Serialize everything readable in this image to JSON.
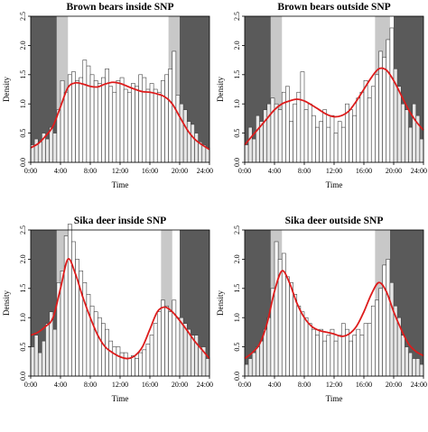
{
  "chart_data": [
    {
      "type": "bar",
      "title": "Brown bears inside SNP",
      "xlabel": "Time",
      "ylabel": "Density",
      "xlim": [
        0,
        24
      ],
      "ylim": [
        0,
        2.5
      ],
      "x_ticks": [
        "0:00",
        "4:00",
        "8:00",
        "12:00",
        "16:00",
        "20:00",
        "24:00"
      ],
      "y_ticks": [
        "0.0",
        "0.5",
        "1.0",
        "1.5",
        "2.0",
        "2.5"
      ],
      "night_shading": [
        [
          0,
          3.5
        ],
        [
          20,
          24
        ]
      ],
      "twilight_shading": [
        [
          3.5,
          5
        ],
        [
          18.5,
          20
        ]
      ],
      "bin_width": 0.5,
      "values": [
        0.3,
        0.4,
        0.35,
        0.5,
        0.4,
        0.6,
        0.5,
        0.9,
        1.4,
        1.2,
        1.5,
        1.55,
        1.4,
        1.45,
        1.75,
        1.65,
        1.5,
        1.4,
        1.35,
        1.45,
        1.6,
        1.3,
        1.2,
        1.4,
        1.45,
        1.25,
        1.2,
        1.35,
        1.3,
        1.5,
        1.45,
        1.25,
        1.35,
        1.25,
        1.2,
        1.4,
        1.5,
        1.6,
        1.9,
        1.15,
        1.0,
        0.9,
        0.7,
        0.65,
        0.5,
        0.35,
        0.3,
        0.25
      ],
      "density_x": [
        0,
        1,
        2,
        3,
        4,
        5,
        6,
        7,
        8,
        9,
        10,
        11,
        12,
        13,
        14,
        15,
        16,
        17,
        18,
        19,
        20,
        21,
        22,
        23,
        24
      ],
      "density_y": [
        0.25,
        0.32,
        0.45,
        0.62,
        0.95,
        1.28,
        1.36,
        1.34,
        1.3,
        1.29,
        1.34,
        1.37,
        1.35,
        1.3,
        1.25,
        1.21,
        1.2,
        1.17,
        1.12,
        1.0,
        0.78,
        0.56,
        0.4,
        0.3,
        0.22
      ]
    },
    {
      "type": "bar",
      "title": "Brown bears outside SNP",
      "xlabel": "Time",
      "ylabel": "Density",
      "xlim": [
        0,
        24
      ],
      "ylim": [
        0,
        2.5
      ],
      "x_ticks": [
        "0:00",
        "4:00",
        "8:00",
        "12:00",
        "16:00",
        "20:00",
        "24:00"
      ],
      "y_ticks": [
        "0.0",
        "0.5",
        "1.0",
        "1.5",
        "2.0",
        "2.5"
      ],
      "night_shading": [
        [
          0,
          3.5
        ],
        [
          20,
          24
        ]
      ],
      "twilight_shading": [
        [
          3.5,
          5
        ],
        [
          17.5,
          19.5
        ]
      ],
      "bin_width": 0.5,
      "values": [
        0.3,
        0.6,
        0.4,
        0.8,
        0.7,
        0.9,
        1.0,
        1.1,
        1.0,
        0.9,
        1.2,
        1.3,
        0.7,
        1.0,
        1.2,
        1.55,
        0.9,
        1.0,
        0.8,
        0.6,
        0.7,
        0.9,
        0.6,
        0.8,
        0.5,
        0.7,
        0.6,
        1.0,
        0.9,
        0.8,
        1.1,
        1.2,
        1.4,
        1.1,
        1.3,
        1.5,
        1.9,
        1.8,
        2.1,
        2.3,
        1.6,
        1.3,
        1.0,
        0.9,
        0.6,
        1.0,
        0.8,
        0.4
      ],
      "density_x": [
        0,
        1,
        2,
        3,
        4,
        5,
        6,
        7,
        8,
        9,
        10,
        11,
        12,
        13,
        14,
        15,
        16,
        17,
        18,
        19,
        20,
        21,
        22,
        23,
        24
      ],
      "density_y": [
        0.3,
        0.45,
        0.6,
        0.75,
        0.9,
        1.0,
        1.05,
        1.08,
        1.05,
        0.98,
        0.9,
        0.82,
        0.78,
        0.8,
        0.88,
        1.05,
        1.25,
        1.45,
        1.6,
        1.58,
        1.4,
        1.15,
        0.9,
        0.7,
        0.55
      ]
    },
    {
      "type": "bar",
      "title": "Sika deer inside SNP",
      "xlabel": "Time",
      "ylabel": "Density",
      "xlim": [
        0,
        24
      ],
      "ylim": [
        0,
        2.5
      ],
      "x_ticks": [
        "0:00",
        "4:00",
        "8:00",
        "12:00",
        "16:00",
        "20:00",
        "24:00"
      ],
      "y_ticks": [
        "0.0",
        "0.5",
        "1.0",
        "1.5",
        "2.0",
        "2.5"
      ],
      "night_shading": [
        [
          0,
          3.5
        ],
        [
          20,
          24
        ]
      ],
      "twilight_shading": [
        [
          3.5,
          5
        ],
        [
          17.5,
          19
        ]
      ],
      "bin_width": 0.5,
      "values": [
        0.5,
        0.7,
        0.4,
        0.6,
        0.9,
        1.1,
        0.8,
        1.6,
        1.8,
        2.4,
        2.6,
        2.3,
        2.0,
        1.8,
        1.6,
        1.4,
        1.2,
        1.1,
        1.0,
        0.9,
        0.8,
        0.6,
        0.5,
        0.5,
        0.4,
        0.4,
        0.3,
        0.35,
        0.3,
        0.4,
        0.45,
        0.55,
        0.7,
        0.9,
        1.1,
        1.3,
        1.2,
        1.1,
        1.3,
        1.0,
        1.0,
        0.9,
        0.8,
        0.7,
        0.7,
        0.5,
        0.5,
        0.3
      ],
      "density_x": [
        0,
        1,
        2,
        3,
        4,
        5,
        6,
        7,
        8,
        9,
        10,
        11,
        12,
        13,
        14,
        15,
        16,
        17,
        18,
        19,
        20,
        21,
        22,
        23,
        24
      ],
      "density_y": [
        0.7,
        0.75,
        0.85,
        1.0,
        1.5,
        2.0,
        1.75,
        1.35,
        1.0,
        0.7,
        0.5,
        0.4,
        0.33,
        0.3,
        0.35,
        0.5,
        0.8,
        1.1,
        1.18,
        1.1,
        0.95,
        0.78,
        0.6,
        0.45,
        0.3
      ]
    },
    {
      "type": "bar",
      "title": "Sika deer outside SNP",
      "xlabel": "Time",
      "ylabel": "Density",
      "xlim": [
        0,
        24
      ],
      "ylim": [
        0,
        2.5
      ],
      "x_ticks": [
        "0:00",
        "4:00",
        "8:00",
        "12:00",
        "16:00",
        "20:00",
        "24:00"
      ],
      "y_ticks": [
        "0.0",
        "0.5",
        "1.0",
        "1.5",
        "2.0",
        "2.5"
      ],
      "night_shading": [
        [
          0,
          3.5
        ],
        [
          19.5,
          24
        ]
      ],
      "twilight_shading": [
        [
          3.5,
          5
        ],
        [
          17.5,
          19.5
        ]
      ],
      "bin_width": 0.5,
      "values": [
        0.2,
        0.3,
        0.4,
        0.5,
        0.6,
        0.8,
        1.0,
        1.5,
        2.3,
        2.0,
        2.1,
        1.7,
        1.6,
        1.4,
        1.2,
        1.1,
        1.0,
        0.9,
        0.8,
        0.7,
        0.8,
        0.6,
        0.7,
        0.8,
        0.6,
        0.7,
        0.9,
        0.8,
        0.6,
        0.7,
        0.8,
        0.7,
        0.9,
        0.9,
        1.2,
        1.3,
        1.5,
        1.9,
        2.0,
        1.6,
        1.2,
        1.0,
        0.7,
        0.5,
        0.4,
        0.3,
        0.3,
        0.2
      ],
      "density_x": [
        0,
        1,
        2,
        3,
        4,
        5,
        6,
        7,
        8,
        9,
        10,
        11,
        12,
        13,
        14,
        15,
        16,
        17,
        18,
        19,
        20,
        21,
        22,
        23,
        24
      ],
      "density_y": [
        0.3,
        0.4,
        0.55,
        0.9,
        1.45,
        1.8,
        1.6,
        1.25,
        1.0,
        0.85,
        0.78,
        0.75,
        0.72,
        0.68,
        0.72,
        0.85,
        1.1,
        1.4,
        1.6,
        1.45,
        1.1,
        0.8,
        0.55,
        0.42,
        0.35
      ]
    }
  ],
  "colors": {
    "night": "#5a5a5a",
    "twilight": "#c8c8c8",
    "bar_fill": "#ffffff",
    "bar_stroke": "#404040",
    "density_line": "#dd1c1c",
    "axis": "#000000"
  }
}
